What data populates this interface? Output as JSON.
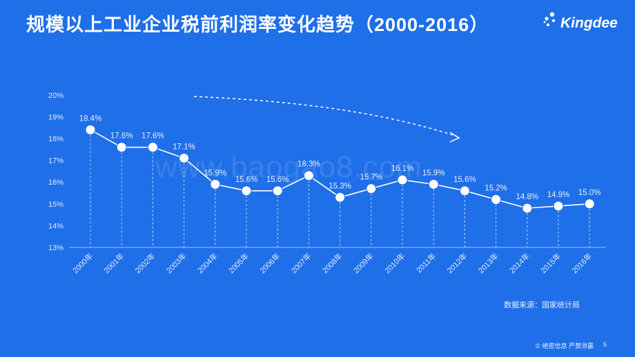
{
  "title": "规模以上工业企业税前利润率变化趋势（2000-2016）",
  "brand": {
    "name": "Kingdee"
  },
  "watermark": "www.baogao8.com",
  "source_note": "数据来源：国家统计局",
  "footer": {
    "confidential": "① 绝密信息 严禁泄露",
    "page": "5"
  },
  "colors": {
    "background": "#1f6fe8",
    "line": "#ffffff",
    "text": "#ffffff"
  },
  "chart_data": {
    "type": "line",
    "categories": [
      "2000年",
      "2001年",
      "2002年",
      "2003年",
      "2004年",
      "2005年",
      "2006年",
      "2007年",
      "2008年",
      "2009年",
      "2010年",
      "2011年",
      "2012年",
      "2013年",
      "2014年",
      "2015年",
      "2016年"
    ],
    "values": [
      18.4,
      17.6,
      17.6,
      17.1,
      15.9,
      15.6,
      15.6,
      16.3,
      15.3,
      15.7,
      16.1,
      15.9,
      15.6,
      15.2,
      14.8,
      14.9,
      15.0
    ],
    "data_labels": [
      "18.4%",
      "17.6%",
      "17.6%",
      "17.1%",
      "15.9%",
      "15.6%",
      "15.6%",
      "16.3%",
      "15.3%",
      "15.7%",
      "16.1%",
      "15.9%",
      "15.6%",
      "15.2%",
      "14.8%",
      "14.9%",
      "15.0%"
    ],
    "yticks": [
      "13%",
      "14%",
      "15%",
      "16%",
      "17%",
      "18%",
      "19%",
      "20%"
    ],
    "ylim": [
      13,
      20
    ],
    "grid": false,
    "trend_arrow": "downward dashed arrow"
  }
}
